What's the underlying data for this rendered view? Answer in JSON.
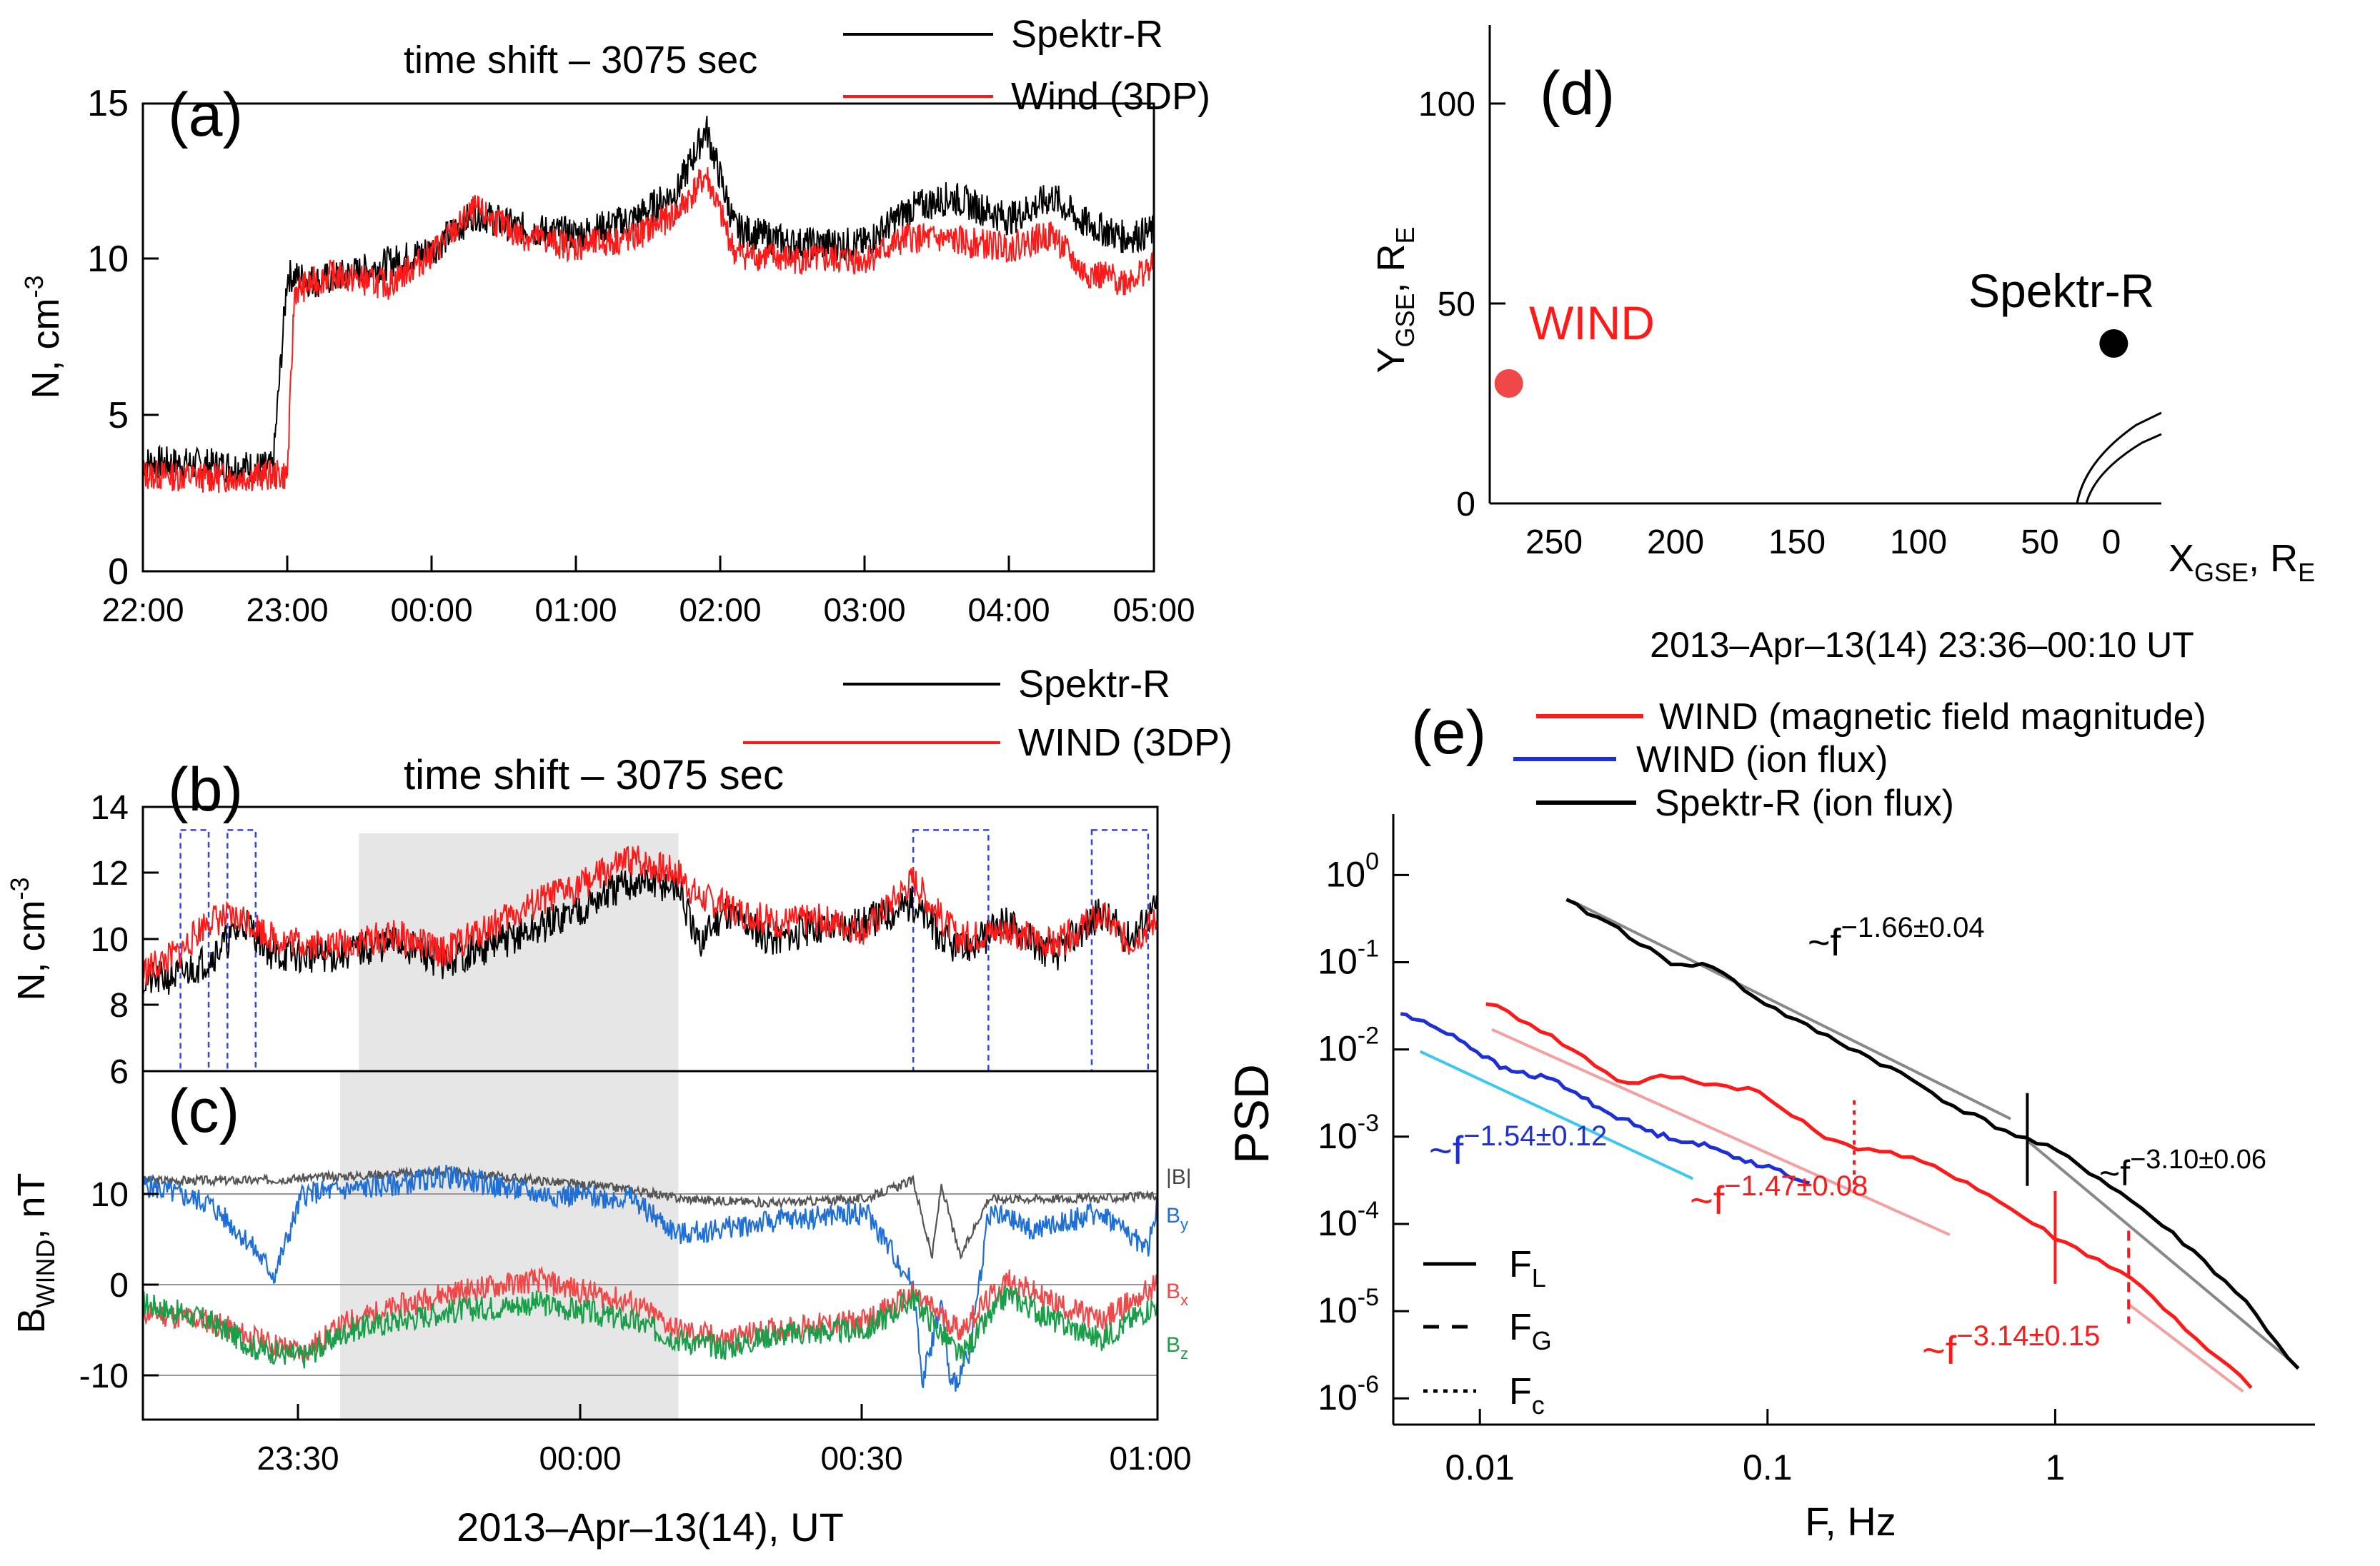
{
  "panels": {
    "a": {
      "letter": "(a)",
      "annotation": "time shift – 3075 sec",
      "ylabel": "N, cm",
      "ylabel_sup": "-3",
      "ytick_labels": [
        "0",
        "5",
        "10",
        "15"
      ],
      "xtick_labels": [
        "22:00",
        "23:00",
        "00:00",
        "01:00",
        "02:00",
        "03:00",
        "04:00",
        "05:00"
      ],
      "legend": [
        "Spektr-R",
        "Wind (3DP)"
      ]
    },
    "b": {
      "letter": "(b)",
      "annotation": "time shift – 3075 sec",
      "ylabel": "N, cm",
      "ylabel_sup": "-3",
      "ytick_labels": [
        "6",
        "8",
        "10",
        "12",
        "14"
      ],
      "legend": [
        "Spektr-R",
        "WIND (3DP)"
      ]
    },
    "c": {
      "letter": "(c)",
      "ylabel": "B",
      "ylabel_sub": "WIND",
      "ylabel_tail": ", nT",
      "ytick_labels": [
        "-10",
        "0",
        "10"
      ],
      "xtick_labels": [
        "23:30",
        "00:00",
        "00:30",
        "01:00"
      ],
      "xlabel": "2013–Apr–13(14), UT",
      "component_labels": {
        "B": "|B|",
        "By": "B",
        "By_sub": "y",
        "Bx": "B",
        "Bx_sub": "x",
        "Bz": "B",
        "Bz_sub": "z"
      }
    },
    "d": {
      "letter": "(d)",
      "ylabel_main": "Y",
      "ylabel_sub": "GSE",
      "ylabel_mid": ", R",
      "ylabel_sub2": "E",
      "xlabel_main": "X",
      "xlabel_sub": "GSE",
      "xlabel_mid": ", R",
      "xlabel_sub2": "E",
      "ytick_labels": [
        "0",
        "50",
        "100"
      ],
      "xtick_labels": [
        "250",
        "200",
        "150",
        "100",
        "50",
        "0"
      ],
      "wind_label": "WIND",
      "spektr_label": "Spektr-R"
    },
    "e": {
      "letter": "(e)",
      "title": "2013–Apr–13(14) 23:36–00:10 UT",
      "ylabel": "PSD",
      "xlabel": "F, Hz",
      "xtick_labels": [
        "0.01",
        "0.1",
        "1"
      ],
      "ytick_base": "10",
      "ytick_exps": [
        "0",
        "-1",
        "-2",
        "-3",
        "-4",
        "-5",
        "-6"
      ],
      "legend": [
        "WIND (magnetic field magnitude)",
        "WIND (ion flux)",
        "Spektr-R (ion flux)"
      ],
      "fit_labels": {
        "spektr_low": {
          "pre": "~f",
          "exp": "−1.66±0.04"
        },
        "spektr_high": {
          "pre": "~f",
          "exp": "−3.10±0.06"
        },
        "wind_ion": {
          "pre": "~f",
          "exp": "−1.54±0.12"
        },
        "wind_mag_low": {
          "pre": "~f",
          "exp": "−1.47±0.08"
        },
        "wind_mag_high": {
          "pre": "~f",
          "exp": "−3.14±0.15"
        }
      },
      "line_legend": [
        {
          "main": "F",
          "sub": "L"
        },
        {
          "main": "F",
          "sub": "G"
        },
        {
          "main": "F",
          "sub": "c"
        }
      ]
    }
  },
  "colors": {
    "spektr": "#000000",
    "wind": "#ff1a1a",
    "wind_ion": "#1f2fd6",
    "By": "#1f6fd6",
    "Bx": "#f04848",
    "Bz": "#1a9e4a",
    "Bmag": "#555555",
    "shade": "#e6e6e6",
    "dashbox": "#3344ee",
    "fit_black": "#888888",
    "fit_red": "#f4a0a0",
    "fit_cyan": "#3cc8f0"
  },
  "chart_data": [
    {
      "id": "a",
      "type": "line",
      "xlabel": "",
      "ylabel": "N, cm-3",
      "xlim_hours": [
        22,
        29
      ],
      "ylim": [
        0,
        15
      ],
      "series": [
        {
          "name": "Spektr-R",
          "x": [
            22.0,
            22.5,
            22.9,
            23.0,
            23.2,
            23.5,
            24.0,
            24.3,
            24.6,
            25.0,
            25.4,
            25.7,
            25.9,
            26.1,
            26.5,
            27.0,
            27.3,
            27.6,
            28.0,
            28.3,
            28.5,
            28.8,
            29.0
          ],
          "y": [
            3.5,
            3.4,
            3.3,
            9.5,
            9.3,
            9.6,
            10.3,
            11.5,
            11.0,
            10.8,
            11.3,
            12.2,
            14.2,
            11.0,
            10.5,
            10.5,
            11.6,
            12.0,
            11.3,
            12.0,
            11.2,
            10.7,
            10.9
          ]
        },
        {
          "name": "Wind (3DP)",
          "x": [
            22.0,
            22.5,
            23.0,
            23.05,
            23.3,
            23.7,
            24.0,
            24.3,
            24.6,
            25.0,
            25.4,
            25.7,
            25.9,
            26.1,
            26.5,
            27.0,
            27.3,
            27.6,
            28.0,
            28.3,
            28.5,
            28.8,
            29.0
          ],
          "y": [
            3.1,
            3.0,
            3.1,
            9.0,
            9.5,
            9.2,
            10.2,
            11.6,
            10.8,
            10.4,
            10.7,
            11.5,
            12.7,
            10.2,
            10.0,
            10.0,
            10.7,
            10.6,
            10.4,
            10.8,
            9.6,
            9.3,
            9.8
          ]
        }
      ]
    },
    {
      "id": "b",
      "type": "line",
      "ylabel": "N, cm-3",
      "xlim_minutes_from_2300": [
        13,
        121
      ],
      "ylim": [
        6,
        14
      ],
      "shaded_interval_min": [
        36,
        70
      ],
      "dashed_boxes_min": [
        [
          17,
          20
        ],
        [
          22,
          25
        ],
        [
          95,
          103
        ],
        [
          114,
          120
        ]
      ],
      "series": [
        {
          "name": "Spektr-R",
          "x": [
            13,
            17,
            20,
            24,
            27,
            33,
            40,
            45,
            50,
            55,
            60,
            65,
            70,
            72,
            75,
            80,
            85,
            90,
            95,
            98,
            100,
            105,
            110,
            115,
            118,
            121
          ],
          "y": [
            8.7,
            8.9,
            9.4,
            10.5,
            9.5,
            9.5,
            9.9,
            9.3,
            9.8,
            10.3,
            11.0,
            11.7,
            11.6,
            9.8,
            10.9,
            10.0,
            10.4,
            10.5,
            11.1,
            10.0,
            9.6,
            10.5,
            9.5,
            10.8,
            10.0,
            11.0
          ]
        },
        {
          "name": "WIND (3DP)",
          "x": [
            13,
            17,
            20,
            24,
            27,
            33,
            40,
            45,
            50,
            55,
            60,
            65,
            70,
            72,
            75,
            80,
            85,
            90,
            95,
            98,
            100,
            105,
            110,
            115,
            118,
            121
          ],
          "y": [
            9.0,
            9.6,
            10.6,
            10.6,
            10.0,
            9.8,
            10.1,
            9.6,
            10.4,
            11.1,
            11.7,
            12.4,
            12.0,
            11.3,
            11.0,
            10.5,
            10.6,
            10.3,
            11.8,
            10.6,
            10.0,
            10.3,
            9.8,
            10.7,
            9.9,
            10.6
          ]
        }
      ]
    },
    {
      "id": "c",
      "type": "line",
      "ylabel": "B_WIND, nT",
      "xlabel": "2013–Apr–13(14), UT",
      "xlim_minutes_from_2300": [
        13,
        121
      ],
      "ylim": [
        -14,
        15
      ],
      "series": [
        {
          "name": "|B|",
          "x": [
            13,
            25,
            35,
            45,
            55,
            65,
            70,
            80,
            90,
            95,
            97,
            98,
            100,
            103,
            110,
            115,
            121
          ],
          "y": [
            11.5,
            11.5,
            12.0,
            12.5,
            11.5,
            10.5,
            9.5,
            9.0,
            9.5,
            11.5,
            3,
            11.0,
            3,
            9.5,
            9.5,
            9.5,
            9.8
          ]
        },
        {
          "name": "By",
          "x": [
            13,
            20,
            24,
            27,
            30,
            40,
            45,
            55,
            65,
            70,
            80,
            90,
            95,
            96,
            98,
            99,
            101,
            103,
            108,
            115,
            120,
            121
          ],
          "y": [
            11.0,
            9.0,
            5.0,
            1.0,
            10.0,
            11.0,
            12.0,
            10.0,
            9.5,
            5.5,
            7.0,
            8.0,
            0,
            -10.5,
            -2,
            -11.5,
            -8,
            8.0,
            6.0,
            8.0,
            4.0,
            9.0
          ]
        },
        {
          "name": "Bx",
          "x": [
            13,
            20,
            25,
            30,
            35,
            45,
            55,
            65,
            70,
            75,
            80,
            90,
            95,
            100,
            105,
            110,
            115,
            121
          ],
          "y": [
            -3.0,
            -4.0,
            -6.0,
            -7.5,
            -4.0,
            -1.0,
            0.5,
            -2.0,
            -5.0,
            -6.0,
            -5.0,
            -4.0,
            -1.0,
            -5.0,
            0.5,
            -2.0,
            -4.0,
            0.0
          ]
        },
        {
          "name": "Bz",
          "x": [
            13,
            20,
            25,
            30,
            35,
            45,
            55,
            65,
            70,
            75,
            80,
            90,
            95,
            100,
            105,
            110,
            115,
            121
          ],
          "y": [
            -2.0,
            -4.0,
            -7.0,
            -8.0,
            -5.0,
            -3.0,
            -2.0,
            -4.0,
            -6.0,
            -7.0,
            -5.5,
            -5.0,
            -1.5,
            -8.0,
            -1.0,
            -4.0,
            -6.0,
            -2.0
          ]
        }
      ]
    },
    {
      "id": "d",
      "type": "scatter",
      "xlabel": "X_GSE, R_E",
      "ylabel": "Y_GSE, R_E",
      "xlim": [
        270,
        -12
      ],
      "ylim": [
        0,
        120
      ],
      "points": [
        {
          "name": "WIND",
          "x": 262,
          "y": 30
        },
        {
          "name": "Spektr-R",
          "x": 8,
          "y": 40
        }
      ]
    },
    {
      "id": "e",
      "type": "line",
      "xscale": "log",
      "yscale": "log",
      "xlabel": "F, Hz",
      "ylabel": "PSD",
      "xlim": [
        0.005,
        8
      ],
      "ylim": [
        5e-07,
        5
      ],
      "series": [
        {
          "name": "Spektr-R (ion flux)",
          "x": [
            0.02,
            0.03,
            0.045,
            0.065,
            0.09,
            0.13,
            0.2,
            0.3,
            0.45,
            0.7,
            1.0,
            1.5,
            2.0,
            3.0,
            4.5,
            7.0
          ],
          "y": [
            0.5,
            0.25,
            0.1,
            0.09,
            0.04,
            0.02,
            0.01,
            0.005,
            0.0022,
            0.0011,
            0.0007,
            0.0003,
            0.00015,
            5e-05,
            1.4e-05,
            2.1e-06
          ]
        },
        {
          "name": "WIND (magnetic field magnitude)",
          "x": [
            0.0105,
            0.015,
            0.022,
            0.032,
            0.045,
            0.065,
            0.09,
            0.13,
            0.18,
            0.25,
            0.35,
            0.5,
            0.7,
            1.0,
            1.4,
            2.0,
            3.0,
            4.8
          ],
          "y": [
            0.035,
            0.02,
            0.009,
            0.004,
            0.005,
            0.004,
            0.0035,
            0.0015,
            0.0008,
            0.0007,
            0.0005,
            0.0003,
            0.00015,
            7e-05,
            4e-05,
            2e-05,
            5e-06,
            1.4e-06
          ]
        },
        {
          "name": "WIND (ion flux)",
          "x": [
            0.0053,
            0.008,
            0.012,
            0.018,
            0.027,
            0.04,
            0.06,
            0.09,
            0.14
          ],
          "y": [
            0.026,
            0.015,
            0.006,
            0.0045,
            0.002,
            0.0011,
            0.0008,
            0.0005,
            0.0003
          ]
        }
      ],
      "fits": [
        {
          "label": "~f −1.66±0.04",
          "x": [
            0.021,
            0.7
          ],
          "y": [
            0.5,
            0.0016
          ]
        },
        {
          "label": "~f −3.10±0.06",
          "x": [
            0.8,
            6.5
          ],
          "y": [
            0.0009,
            2.8e-06
          ]
        },
        {
          "label": "~f −1.54±0.12",
          "x": [
            0.0062,
            0.055
          ],
          "y": [
            0.0095,
            0.00033
          ]
        },
        {
          "label": "~f −1.47±0.08",
          "x": [
            0.011,
            0.43
          ],
          "y": [
            0.017,
            7.5e-05
          ]
        },
        {
          "label": "~f −3.14±0.15",
          "x": [
            1.8,
            4.5
          ],
          "y": [
            1.2e-05,
            1.2e-06
          ]
        }
      ],
      "markers": [
        {
          "kind": "F_L",
          "series": "Spektr-R (ion flux)",
          "x": 0.8
        },
        {
          "kind": "F_L",
          "series": "WIND (magnetic field magnitude)",
          "x": 1.0
        },
        {
          "kind": "F_G",
          "series": "WIND (magnetic field magnitude)",
          "x": 1.8
        },
        {
          "kind": "F_c",
          "series": "WIND (magnetic field magnitude)",
          "x": 0.2
        }
      ]
    }
  ]
}
